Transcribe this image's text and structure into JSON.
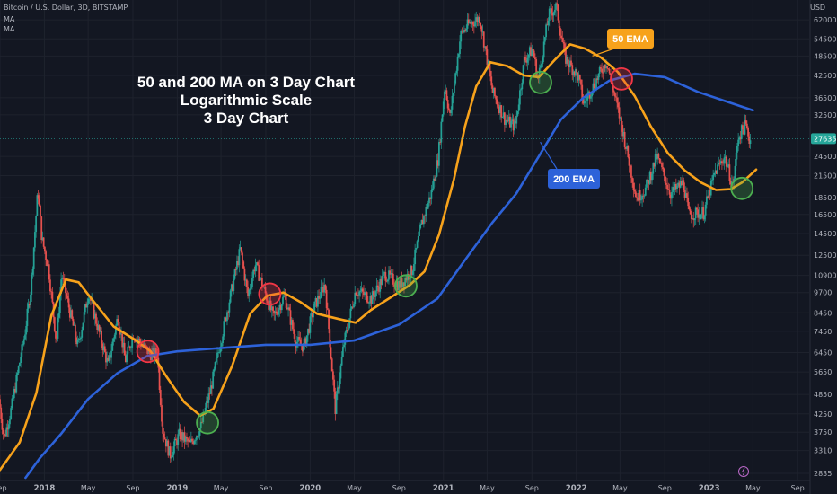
{
  "header": {
    "symbol_line": "Bitcoin / U.S. Dollar, 3D, BITSTAMP",
    "indicators": [
      "MA",
      "MA"
    ],
    "currency": "USD"
  },
  "annotation": {
    "title_lines": [
      "50 and 200 MA on 3 Day Chart",
      "Logarithmic Scale",
      "3 Day Chart"
    ]
  },
  "colors": {
    "background": "#131722",
    "grid": "#1e222d",
    "ema50": "#f7a21b",
    "ema200": "#2d62d9",
    "candle_up": "#26a69a",
    "candle_down": "#ef5350",
    "price_tag": "#26a69a",
    "marker_red": "#f23645",
    "marker_green": "#4caf50"
  },
  "chart_data": {
    "type": "line",
    "yscale": "log",
    "ylim": [
      2700,
      71000
    ],
    "x_range": [
      "2017-09-01",
      "2023-10-05"
    ],
    "y_ticks": [
      62000,
      54500,
      48500,
      42500,
      36500,
      32500,
      27635,
      24500,
      21500,
      18500,
      16500,
      14500,
      12500,
      10900,
      9700,
      8450,
      7450,
      6450,
      5650,
      4850,
      4250,
      3750,
      3310,
      2835
    ],
    "current_price": "27635",
    "x_ticks": [
      {
        "date": "2017-09-01",
        "label": "Sep",
        "bold": false
      },
      {
        "date": "2018-01-01",
        "label": "2018",
        "bold": true
      },
      {
        "date": "2018-05-01",
        "label": "May",
        "bold": false
      },
      {
        "date": "2018-09-01",
        "label": "Sep",
        "bold": false
      },
      {
        "date": "2019-01-01",
        "label": "2019",
        "bold": true
      },
      {
        "date": "2019-05-01",
        "label": "May",
        "bold": false
      },
      {
        "date": "2019-09-01",
        "label": "Sep",
        "bold": false
      },
      {
        "date": "2020-01-01",
        "label": "2020",
        "bold": true
      },
      {
        "date": "2020-05-01",
        "label": "May",
        "bold": false
      },
      {
        "date": "2020-09-01",
        "label": "Sep",
        "bold": false
      },
      {
        "date": "2021-01-01",
        "label": "2021",
        "bold": true
      },
      {
        "date": "2021-05-01",
        "label": "May",
        "bold": false
      },
      {
        "date": "2021-09-01",
        "label": "Sep",
        "bold": false
      },
      {
        "date": "2022-01-01",
        "label": "2022",
        "bold": true
      },
      {
        "date": "2022-05-01",
        "label": "May",
        "bold": false
      },
      {
        "date": "2022-09-01",
        "label": "Sep",
        "bold": false
      },
      {
        "date": "2023-01-01",
        "label": "2023",
        "bold": true
      },
      {
        "date": "2023-05-01",
        "label": "May",
        "bold": false
      },
      {
        "date": "2023-09-01",
        "label": "Sep",
        "bold": false
      }
    ],
    "price": [
      {
        "x": "2017-09-01",
        "y": 4700
      },
      {
        "x": "2017-09-15",
        "y": 3600
      },
      {
        "x": "2017-10-05",
        "y": 4400
      },
      {
        "x": "2017-10-25",
        "y": 5800
      },
      {
        "x": "2017-11-10",
        "y": 7200
      },
      {
        "x": "2017-11-28",
        "y": 10000
      },
      {
        "x": "2017-12-17",
        "y": 19500
      },
      {
        "x": "2017-12-28",
        "y": 14000
      },
      {
        "x": "2018-01-15",
        "y": 11500
      },
      {
        "x": "2018-02-06",
        "y": 6900
      },
      {
        "x": "2018-02-20",
        "y": 11000
      },
      {
        "x": "2018-03-10",
        "y": 9000
      },
      {
        "x": "2018-04-06",
        "y": 6700
      },
      {
        "x": "2018-05-05",
        "y": 9700
      },
      {
        "x": "2018-06-28",
        "y": 5900
      },
      {
        "x": "2018-07-25",
        "y": 8300
      },
      {
        "x": "2018-08-14",
        "y": 6100
      },
      {
        "x": "2018-09-05",
        "y": 7300
      },
      {
        "x": "2018-10-20",
        "y": 6400
      },
      {
        "x": "2018-11-10",
        "y": 6400
      },
      {
        "x": "2018-11-25",
        "y": 3800
      },
      {
        "x": "2018-12-15",
        "y": 3200
      },
      {
        "x": "2019-01-10",
        "y": 3700
      },
      {
        "x": "2019-02-08",
        "y": 3450
      },
      {
        "x": "2019-03-10",
        "y": 3900
      },
      {
        "x": "2019-04-05",
        "y": 5000
      },
      {
        "x": "2019-05-15",
        "y": 8000
      },
      {
        "x": "2019-06-26",
        "y": 13000
      },
      {
        "x": "2019-07-17",
        "y": 9500
      },
      {
        "x": "2019-08-06",
        "y": 11800
      },
      {
        "x": "2019-09-25",
        "y": 8200
      },
      {
        "x": "2019-10-26",
        "y": 9500
      },
      {
        "x": "2019-11-25",
        "y": 7000
      },
      {
        "x": "2019-12-18",
        "y": 6700
      },
      {
        "x": "2020-01-15",
        "y": 8800
      },
      {
        "x": "2020-02-14",
        "y": 10300
      },
      {
        "x": "2020-03-13",
        "y": 4400
      },
      {
        "x": "2020-04-05",
        "y": 6800
      },
      {
        "x": "2020-05-08",
        "y": 9900
      },
      {
        "x": "2020-06-20",
        "y": 9300
      },
      {
        "x": "2020-07-28",
        "y": 11000
      },
      {
        "x": "2020-09-05",
        "y": 10200
      },
      {
        "x": "2020-10-10",
        "y": 11300
      },
      {
        "x": "2020-11-05",
        "y": 15500
      },
      {
        "x": "2020-12-01",
        "y": 19000
      },
      {
        "x": "2020-12-20",
        "y": 24000
      },
      {
        "x": "2021-01-08",
        "y": 40000
      },
      {
        "x": "2021-01-22",
        "y": 32000
      },
      {
        "x": "2021-02-20",
        "y": 56000
      },
      {
        "x": "2021-03-13",
        "y": 60000
      },
      {
        "x": "2021-04-14",
        "y": 63000
      },
      {
        "x": "2021-05-19",
        "y": 38000
      },
      {
        "x": "2021-06-22",
        "y": 31500
      },
      {
        "x": "2021-07-20",
        "y": 30000
      },
      {
        "x": "2021-08-14",
        "y": 47000
      },
      {
        "x": "2021-09-06",
        "y": 51000
      },
      {
        "x": "2021-09-21",
        "y": 41000
      },
      {
        "x": "2021-10-20",
        "y": 64000
      },
      {
        "x": "2021-11-10",
        "y": 68000
      },
      {
        "x": "2021-12-04",
        "y": 48000
      },
      {
        "x": "2022-01-10",
        "y": 42000
      },
      {
        "x": "2022-01-24",
        "y": 35000
      },
      {
        "x": "2022-03-28",
        "y": 47000
      },
      {
        "x": "2022-05-12",
        "y": 29000
      },
      {
        "x": "2022-06-18",
        "y": 18500
      },
      {
        "x": "2022-07-12",
        "y": 19500
      },
      {
        "x": "2022-08-13",
        "y": 24500
      },
      {
        "x": "2022-09-20",
        "y": 19000
      },
      {
        "x": "2022-10-25",
        "y": 20500
      },
      {
        "x": "2022-11-09",
        "y": 16500
      },
      {
        "x": "2022-12-20",
        "y": 16700
      },
      {
        "x": "2023-01-20",
        "y": 22000
      },
      {
        "x": "2023-02-15",
        "y": 24500
      },
      {
        "x": "2023-03-10",
        "y": 20000
      },
      {
        "x": "2023-03-25",
        "y": 28000
      },
      {
        "x": "2023-04-14",
        "y": 30300
      },
      {
        "x": "2023-04-24",
        "y": 27600
      }
    ],
    "series": [
      {
        "name": "50 EMA",
        "values": [
          {
            "x": "2017-09-01",
            "y": 2900
          },
          {
            "x": "2017-10-25",
            "y": 3500
          },
          {
            "x": "2017-12-10",
            "y": 4900
          },
          {
            "x": "2018-01-20",
            "y": 8300
          },
          {
            "x": "2018-03-01",
            "y": 10600
          },
          {
            "x": "2018-04-05",
            "y": 10400
          },
          {
            "x": "2018-05-10",
            "y": 9300
          },
          {
            "x": "2018-07-10",
            "y": 7700
          },
          {
            "x": "2018-09-10",
            "y": 7000
          },
          {
            "x": "2018-10-20",
            "y": 6500
          },
          {
            "x": "2018-12-01",
            "y": 5500
          },
          {
            "x": "2019-01-20",
            "y": 4600
          },
          {
            "x": "2019-03-05",
            "y": 4200
          },
          {
            "x": "2019-04-10",
            "y": 4400
          },
          {
            "x": "2019-06-01",
            "y": 5900
          },
          {
            "x": "2019-07-20",
            "y": 8400
          },
          {
            "x": "2019-09-05",
            "y": 9500
          },
          {
            "x": "2019-10-20",
            "y": 9700
          },
          {
            "x": "2019-12-05",
            "y": 9100
          },
          {
            "x": "2020-01-20",
            "y": 8400
          },
          {
            "x": "2020-03-20",
            "y": 8100
          },
          {
            "x": "2020-05-05",
            "y": 7900
          },
          {
            "x": "2020-06-15",
            "y": 8600
          },
          {
            "x": "2020-08-10",
            "y": 9400
          },
          {
            "x": "2020-09-30",
            "y": 10200
          },
          {
            "x": "2020-11-10",
            "y": 11200
          },
          {
            "x": "2020-12-20",
            "y": 14400
          },
          {
            "x": "2021-01-30",
            "y": 21000
          },
          {
            "x": "2021-03-01",
            "y": 30000
          },
          {
            "x": "2021-04-01",
            "y": 39500
          },
          {
            "x": "2021-05-10",
            "y": 46500
          },
          {
            "x": "2021-06-25",
            "y": 45300
          },
          {
            "x": "2021-08-10",
            "y": 42500
          },
          {
            "x": "2021-09-20",
            "y": 42000
          },
          {
            "x": "2021-11-05",
            "y": 47500
          },
          {
            "x": "2021-12-15",
            "y": 52500
          },
          {
            "x": "2022-01-25",
            "y": 51000
          },
          {
            "x": "2022-03-10",
            "y": 48000
          },
          {
            "x": "2022-04-25",
            "y": 43500
          },
          {
            "x": "2022-06-10",
            "y": 37000
          },
          {
            "x": "2022-07-25",
            "y": 30000
          },
          {
            "x": "2022-09-10",
            "y": 25000
          },
          {
            "x": "2022-10-25",
            "y": 22300
          },
          {
            "x": "2022-12-10",
            "y": 20500
          },
          {
            "x": "2023-01-20",
            "y": 19500
          },
          {
            "x": "2023-03-01",
            "y": 19600
          },
          {
            "x": "2023-04-01",
            "y": 20500
          },
          {
            "x": "2023-05-10",
            "y": 22400
          }
        ]
      },
      {
        "name": "200 EMA",
        "values": [
          {
            "x": "2017-11-10",
            "y": 2750
          },
          {
            "x": "2017-12-20",
            "y": 3150
          },
          {
            "x": "2018-02-15",
            "y": 3700
          },
          {
            "x": "2018-05-01",
            "y": 4700
          },
          {
            "x": "2018-07-20",
            "y": 5600
          },
          {
            "x": "2018-10-10",
            "y": 6300
          },
          {
            "x": "2019-01-01",
            "y": 6500
          },
          {
            "x": "2019-05-01",
            "y": 6650
          },
          {
            "x": "2019-09-01",
            "y": 6800
          },
          {
            "x": "2020-01-01",
            "y": 6800
          },
          {
            "x": "2020-05-01",
            "y": 7000
          },
          {
            "x": "2020-09-01",
            "y": 7800
          },
          {
            "x": "2020-12-15",
            "y": 9300
          },
          {
            "x": "2021-03-01",
            "y": 12100
          },
          {
            "x": "2021-05-15",
            "y": 15600
          },
          {
            "x": "2021-07-20",
            "y": 19000
          },
          {
            "x": "2021-09-20",
            "y": 24500
          },
          {
            "x": "2021-11-20",
            "y": 31500
          },
          {
            "x": "2022-01-20",
            "y": 36500
          },
          {
            "x": "2022-04-01",
            "y": 41000
          },
          {
            "x": "2022-06-10",
            "y": 43000
          },
          {
            "x": "2022-09-01",
            "y": 42000
          },
          {
            "x": "2022-12-01",
            "y": 38000
          },
          {
            "x": "2023-02-20",
            "y": 35500
          },
          {
            "x": "2023-05-01",
            "y": 33500
          }
        ]
      }
    ],
    "labels": [
      {
        "text": "50 EMA",
        "anchor": {
          "x": "2022-02-14",
          "y": 48500
        }
      },
      {
        "text": "200 EMA",
        "anchor": {
          "x": "2021-09-24",
          "y": 27000
        }
      }
    ],
    "markers": [
      {
        "type": "sell",
        "x": "2018-10-12",
        "y": 6500
      },
      {
        "type": "buy",
        "x": "2019-03-25",
        "y": 4000
      },
      {
        "type": "sell",
        "x": "2019-09-12",
        "y": 9600
      },
      {
        "type": "buy",
        "x": "2020-09-20",
        "y": 10150
      },
      {
        "type": "buy",
        "x": "2021-09-25",
        "y": 40500
      },
      {
        "type": "sell",
        "x": "2022-05-05",
        "y": 41500
      },
      {
        "type": "buy",
        "x": "2023-04-01",
        "y": 19700
      }
    ]
  }
}
